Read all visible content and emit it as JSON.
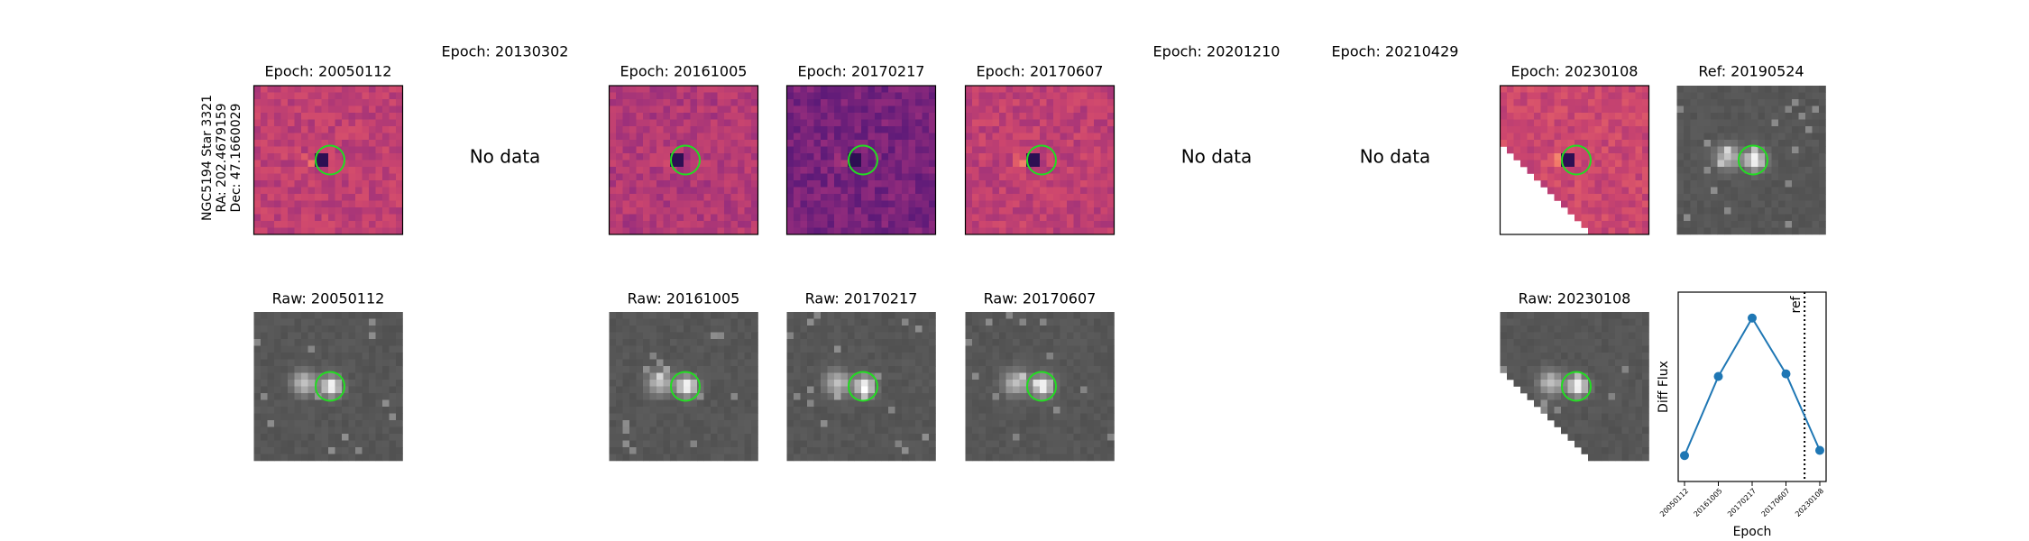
{
  "row_label": [
    "NGC5194 Star 3321",
    "RA: 202.4679159",
    "Dec: 47.1660029"
  ],
  "epochs": [
    {
      "title": "Epoch: 20050112",
      "raw_title": "Raw: 20050112"
    },
    {
      "title": "Epoch: 20130302",
      "no_data": "No data"
    },
    {
      "title": "Epoch: 20161005",
      "raw_title": "Raw: 20161005"
    },
    {
      "title": "Epoch: 20170217",
      "raw_title": "Raw: 20170217"
    },
    {
      "title": "Epoch: 20170607",
      "raw_title": "Raw: 20170607"
    },
    {
      "title": "Epoch: 20201210",
      "no_data": "No data"
    },
    {
      "title": "Epoch: 20210429",
      "no_data": "No data"
    },
    {
      "title": "Epoch: 20230108",
      "raw_title": "Raw: 20230108"
    }
  ],
  "reference": {
    "title": "Ref: 20190524"
  },
  "chart_data": {
    "type": "line",
    "xlabel": "Epoch",
    "ylabel": "Diff Flux",
    "categories": [
      "20050112",
      "20161005",
      "20170217",
      "20170607",
      "20230108"
    ],
    "series": [
      {
        "color": "#1f77b4",
        "values": [
          20,
          81,
          126,
          83,
          24
        ]
      }
    ],
    "ylim": [
      0,
      146
    ],
    "ref_line": {
      "label": "ref",
      "x": 3.55
    }
  }
}
